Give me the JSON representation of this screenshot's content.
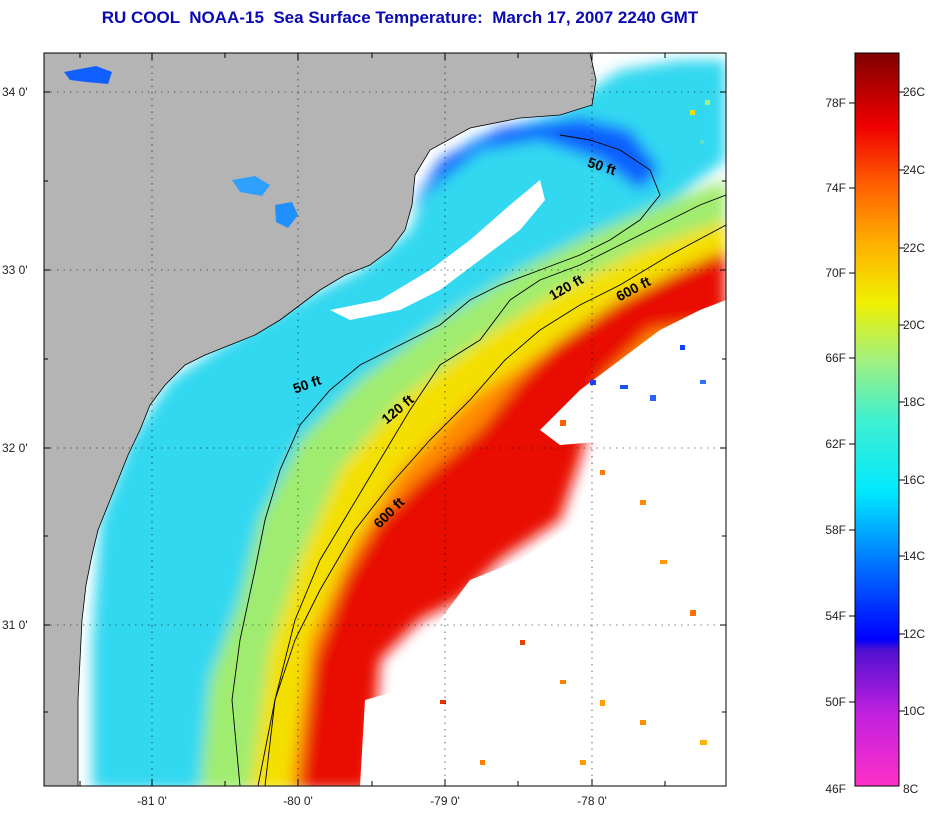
{
  "title": "RU COOL  NOAA-15  Sea Surface Temperature:  March 17, 2007 2240 GMT",
  "lat_labels": [
    "34 0'",
    "33 0'",
    "32 0'",
    "31 0'"
  ],
  "lon_labels": [
    "-81 0'",
    "-80 0'",
    "-79 0'",
    "-78 0'"
  ],
  "depth_labels": {
    "d50_north": "50 ft",
    "d50_south": "50 ft",
    "d120_north": "120 ft",
    "d120_south": "120 ft",
    "d600_north": "600 ft",
    "d600_south": "600 ft"
  },
  "colorbar": {
    "f_labels": [
      "78F",
      "74F",
      "70F",
      "66F",
      "62F",
      "58F",
      "54F",
      "50F",
      "46F"
    ],
    "c_labels": [
      "26C",
      "24C",
      "22C",
      "20C",
      "18C",
      "16C",
      "14C",
      "12C",
      "10C",
      "8C"
    ]
  },
  "colors": {
    "land": "#b4b4b4",
    "title": "#0a0ab4",
    "cloud": "#ffffff"
  }
}
